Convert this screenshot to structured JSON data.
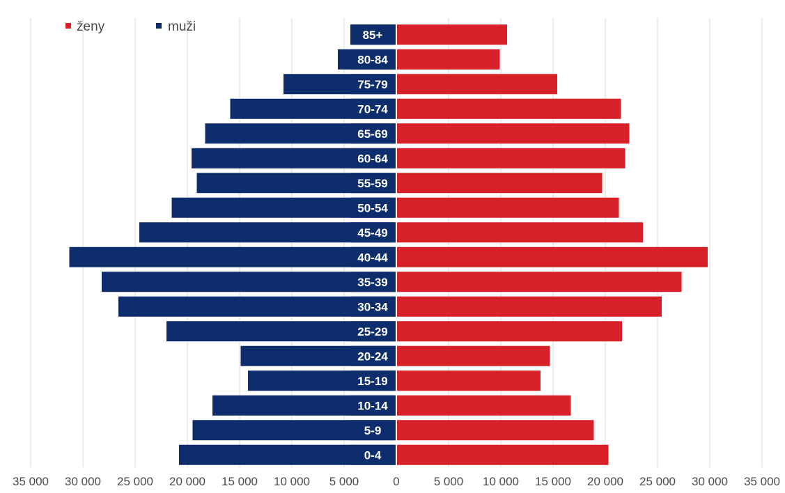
{
  "chart_data": {
    "type": "bar",
    "orientation": "horizontal",
    "layout": "population-pyramid",
    "categories": [
      "85+",
      "80-84",
      "75-79",
      "70-74",
      "65-69",
      "60-64",
      "55-59",
      "50-54",
      "45-49",
      "40-44",
      "35-39",
      "30-34",
      "25-29",
      "20-24",
      "15-19",
      "10-14",
      "5-9",
      "0-4"
    ],
    "series": [
      {
        "name": "muži",
        "color": "#0d2d6c",
        "side": "left",
        "values": [
          4300,
          5600,
          10800,
          15900,
          18300,
          19600,
          19100,
          21500,
          24600,
          31300,
          28200,
          26600,
          22000,
          14900,
          14200,
          17600,
          19500,
          20800
        ]
      },
      {
        "name": "ženy",
        "color": "#d72027",
        "side": "right",
        "values": [
          10600,
          9900,
          15400,
          21500,
          22300,
          21900,
          19700,
          21300,
          23600,
          29800,
          27300,
          25400,
          21600,
          14700,
          13800,
          16700,
          18900,
          20300
        ]
      }
    ],
    "x_ticks": [
      "35 000",
      "30 000",
      "25 000",
      "20 000",
      "15 000",
      "10 000",
      "5 000",
      "0",
      "5 000",
      "10 000",
      "15 000",
      "20 000",
      "25 000",
      "30 000",
      "35 000"
    ],
    "xlim": [
      -35000,
      35000
    ],
    "grid": "vertical",
    "legend_position": "top-left",
    "title": "",
    "xlabel": "",
    "ylabel": ""
  }
}
